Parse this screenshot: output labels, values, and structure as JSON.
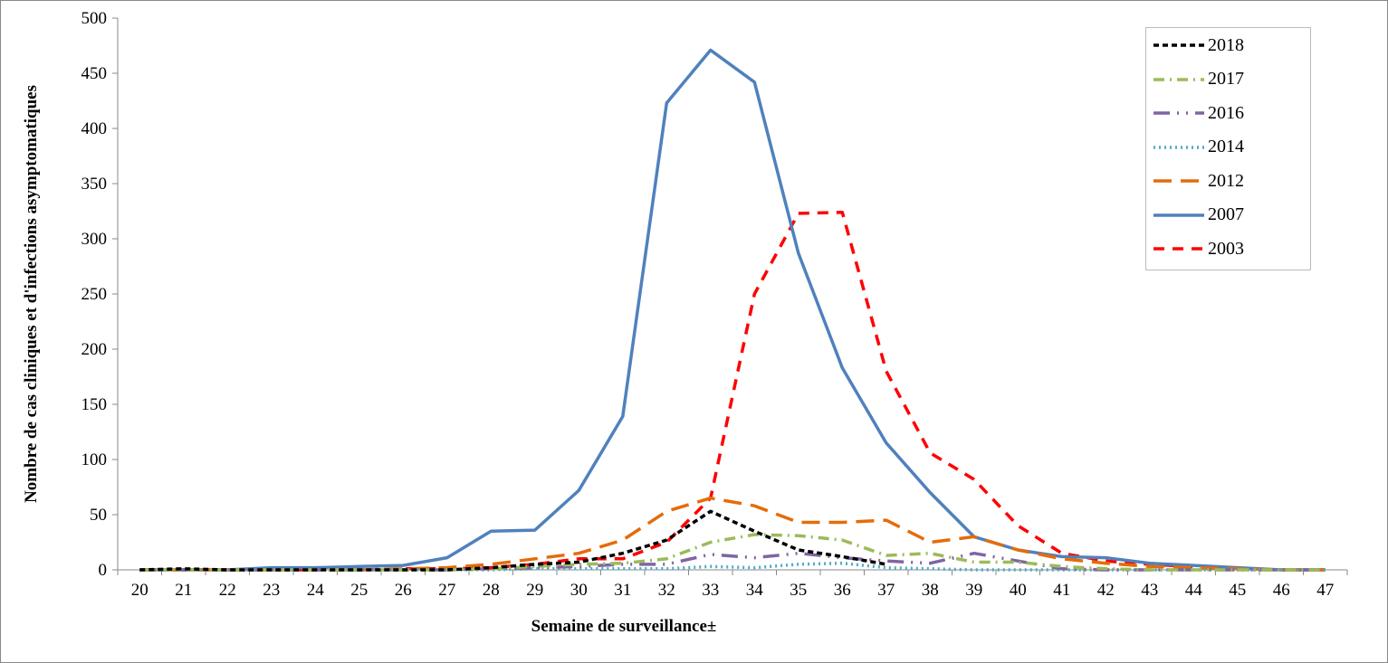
{
  "chart_data": {
    "type": "line",
    "title": "",
    "xlabel": "Semaine de surveillance±",
    "ylabel": "Nombre de cas cliniques et d'infections asymptomatiques",
    "ylim": [
      0,
      500
    ],
    "yticks": [
      0,
      50,
      100,
      150,
      200,
      250,
      300,
      350,
      400,
      450,
      500
    ],
    "categories": [
      "20",
      "21",
      "22",
      "23",
      "24",
      "25",
      "26",
      "27",
      "28",
      "29",
      "30",
      "31",
      "32",
      "33",
      "34",
      "35",
      "36",
      "37",
      "38",
      "39",
      "40",
      "41",
      "42",
      "43",
      "44",
      "45",
      "46",
      "47"
    ],
    "legend_placement": "top-right",
    "series": [
      {
        "name": "2018",
        "color": "#000000",
        "dash": "6,4",
        "values": [
          0,
          1,
          0,
          0,
          0,
          0,
          0,
          0,
          2,
          5,
          7,
          15,
          27,
          53,
          35,
          18,
          12,
          5,
          null,
          null,
          null,
          null,
          null,
          null,
          null,
          null,
          null,
          null
        ]
      },
      {
        "name": "2017",
        "color": "#9BBB59",
        "dash": "12,6,2,6",
        "values": [
          0,
          0,
          0,
          0,
          0,
          0,
          0,
          0,
          1,
          3,
          5,
          6,
          10,
          25,
          32,
          31,
          27,
          13,
          15,
          7,
          7,
          3,
          1,
          0,
          0,
          0,
          0,
          0
        ]
      },
      {
        "name": "2016",
        "color": "#8064A2",
        "dash": "18,8,2,8,2,8",
        "values": [
          0,
          0,
          0,
          0,
          0,
          0,
          0,
          0,
          1,
          2,
          3,
          5,
          5,
          14,
          11,
          15,
          11,
          8,
          6,
          15,
          8,
          1,
          0,
          0,
          0,
          0,
          0,
          0
        ]
      },
      {
        "name": "2014",
        "color": "#4BACC6",
        "dash": "2,4",
        "values": [
          0,
          0,
          0,
          0,
          0,
          0,
          0,
          0,
          0,
          1,
          1,
          1,
          1,
          3,
          2,
          5,
          6,
          2,
          1,
          0,
          0,
          0,
          0,
          0,
          0,
          0,
          0,
          0
        ]
      },
      {
        "name": "2012",
        "color": "#E46C0A",
        "dash": "20,10",
        "values": [
          0,
          0,
          0,
          0,
          0,
          0,
          1,
          2,
          5,
          10,
          15,
          27,
          53,
          65,
          58,
          43,
          43,
          45,
          25,
          30,
          18,
          10,
          6,
          3,
          2,
          1,
          0,
          0
        ]
      },
      {
        "name": "2007",
        "color": "#4F81BD",
        "dash": "",
        "values": [
          0,
          0,
          0,
          2,
          2,
          3,
          4,
          11,
          35,
          36,
          72,
          139,
          423,
          471,
          442,
          287,
          183,
          115,
          70,
          30,
          18,
          12,
          11,
          6,
          4,
          2,
          0,
          0
        ]
      },
      {
        "name": "2003",
        "color": "#FF0000",
        "dash": "12,9",
        "values": [
          0,
          0,
          0,
          0,
          0,
          0,
          1,
          1,
          2,
          5,
          10,
          10,
          25,
          65,
          250,
          323,
          324,
          180,
          106,
          82,
          40,
          15,
          8,
          5,
          3,
          1,
          0,
          0
        ]
      }
    ]
  }
}
